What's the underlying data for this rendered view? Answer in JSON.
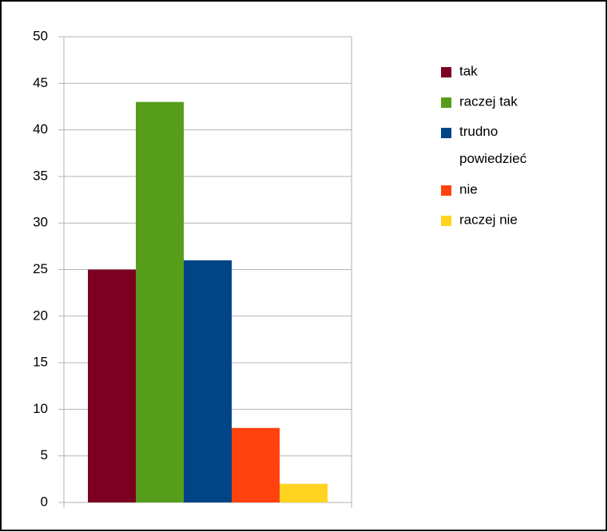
{
  "chart_data": {
    "type": "bar",
    "categories": [
      null
    ],
    "series": [
      {
        "name": "tak",
        "color": "#7b0021",
        "values": [
          25
        ]
      },
      {
        "name": "raczej tak",
        "color": "#579d1c",
        "values": [
          43
        ]
      },
      {
        "name": "trudno powiedzieć",
        "color": "#004586",
        "values": [
          26
        ]
      },
      {
        "name": "nie",
        "color": "#ff420e",
        "values": [
          8
        ]
      },
      {
        "name": "raczej nie",
        "color": "#ffd320",
        "values": [
          2
        ]
      }
    ],
    "ylim": [
      0,
      50
    ],
    "yticks": [
      0,
      5,
      10,
      15,
      20,
      25,
      30,
      35,
      40,
      45,
      50
    ],
    "grid": true,
    "legend": "right"
  }
}
